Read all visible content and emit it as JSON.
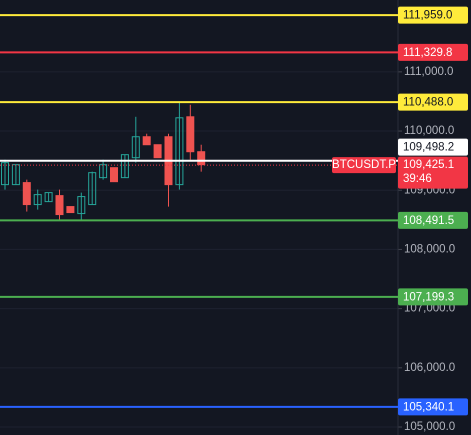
{
  "chart_data": {
    "type": "candlestick",
    "open": [
      109095,
      109095,
      109129,
      108758,
      108808,
      108909,
      108724,
      108606,
      108758,
      109213,
      109381,
      109213,
      109550,
      109904,
      109769,
      109904,
      109095,
      110241,
      109651
    ],
    "high": [
      109516,
      109432,
      109179,
      109011,
      108960,
      109011,
      108724,
      108960,
      109314,
      109516,
      109381,
      109601,
      110241,
      109955,
      109769,
      109955,
      110477,
      110444,
      109769
    ],
    "low": [
      109011,
      109095,
      108640,
      108673,
      108808,
      108505,
      108623,
      108505,
      108758,
      109179,
      109145,
      109213,
      109466,
      109769,
      109550,
      108724,
      109011,
      109516,
      109314
    ],
    "close": [
      109466,
      109432,
      108758,
      108926,
      108960,
      108589,
      108623,
      108893,
      109297,
      109432,
      109145,
      109601,
      109904,
      109769,
      109550,
      109095,
      110224,
      109651,
      109432
    ],
    "up_color": "#26a69a",
    "down_color": "#ef5350",
    "ylim": [
      104865,
      112214
    ],
    "yticks": [
      {
        "value": 111000,
        "label": "111,000.0"
      },
      {
        "value": 110000,
        "label": "110,000.0"
      },
      {
        "value": 109000,
        "label": "109,000.0"
      },
      {
        "value": 108000,
        "label": "108,000.0"
      },
      {
        "value": 107000,
        "label": "107,000.0"
      },
      {
        "value": 106000,
        "label": "106,000.0"
      },
      {
        "value": 105000,
        "label": "105,000.0"
      }
    ],
    "levels": [
      {
        "value": 111959,
        "label": "111,959.0",
        "color": "#ffeb3b"
      },
      {
        "value": 111329.8,
        "label": "111,329.8",
        "color": "#f23645"
      },
      {
        "value": 110488,
        "label": "110,488.0",
        "color": "#ffeb3b"
      },
      {
        "value": 109498.2,
        "label": "109,498.2",
        "color": "#ffffff"
      },
      {
        "value": 108491.5,
        "label": "108,491.5",
        "color": "#4caf50"
      },
      {
        "value": 107199.3,
        "label": "107,199.3",
        "color": "#4caf50"
      },
      {
        "value": 105340.1,
        "label": "105,340.1",
        "color": "#2962ff"
      }
    ],
    "symbol": "BTCUSDT.P",
    "last_price": {
      "value": 109425.1,
      "label": "109,425.1"
    },
    "countdown": "39:46",
    "last_color": "#f23645"
  }
}
